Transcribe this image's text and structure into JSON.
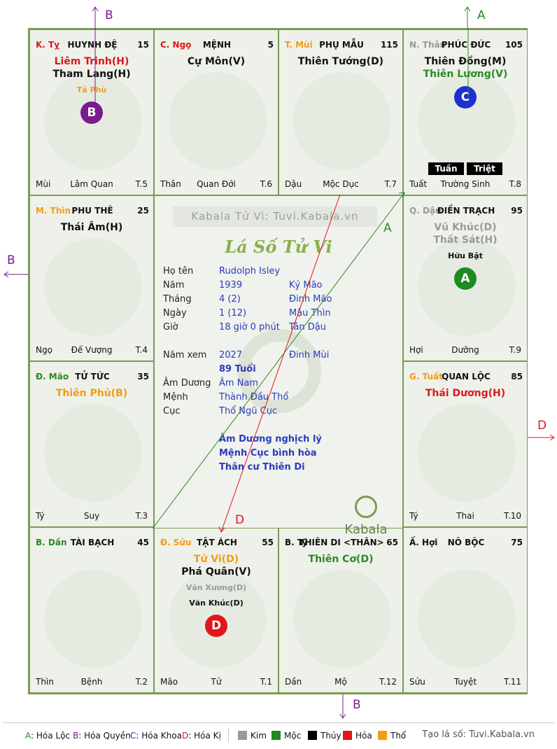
{
  "colors": {
    "red": "#e0161a",
    "orange": "#f39c12",
    "green": "#2a8a23",
    "blue": "#1f2fd0",
    "grey": "#9a9a9a",
    "purple": "#7a1b8e",
    "black": "#111111"
  },
  "palaces": [
    {
      "id": "ty",
      "col": 0,
      "row": 0,
      "can": "K. Tỵ",
      "can_color": "#e0161a",
      "name": "HUYNH ĐỆ",
      "num": "15",
      "stars": [
        {
          "t": "Liêm Trinh(H)",
          "c": "#e0161a"
        },
        {
          "t": "Tham Lang(H)",
          "c": "#111111"
        }
      ],
      "minor": [
        {
          "t": "Tả Phù",
          "c": "#f39c12"
        }
      ],
      "badge": {
        "t": "B",
        "c": "#7a1b8e"
      },
      "foot": {
        "l": "Mùi",
        "m": "Lâm Quan",
        "r": "T.5"
      }
    },
    {
      "id": "ngo",
      "col": 1,
      "row": 0,
      "can": "C. Ngọ",
      "can_color": "#e0161a",
      "name": "MỆNH",
      "num": "5",
      "stars": [
        {
          "t": "Cự Môn(V)",
          "c": "#111111"
        }
      ],
      "minor": [],
      "badge": null,
      "foot": {
        "l": "Thân",
        "m": "Quan Đới",
        "r": "T.6"
      }
    },
    {
      "id": "mui",
      "col": 2,
      "row": 0,
      "can": "T. Mùi",
      "can_color": "#f39c12",
      "name": "PHỤ MẪU",
      "num": "115",
      "stars": [
        {
          "t": "Thiên Tướng(D)",
          "c": "#111111"
        }
      ],
      "minor": [],
      "badge": null,
      "foot": {
        "l": "Dậu",
        "m": "Mộc Dục",
        "r": "T.7"
      }
    },
    {
      "id": "than",
      "col": 3,
      "row": 0,
      "can": "N. Thân",
      "can_color": "#9a9a9a",
      "name": "PHÚC ĐỨC",
      "num": "105",
      "stars": [
        {
          "t": "Thiên Đồng(M)",
          "c": "#111111"
        },
        {
          "t": "Thiên Lương(V)",
          "c": "#2a8a23"
        }
      ],
      "minor": [],
      "badge": {
        "t": "C",
        "c": "#1f2fd0"
      },
      "foot": {
        "l": "Tuất",
        "m": "Trường Sinh",
        "r": "T.8"
      }
    },
    {
      "id": "thin",
      "col": 0,
      "row": 1,
      "can": "M. Thìn",
      "can_color": "#f39c12",
      "name": "PHU THÊ",
      "num": "25",
      "stars": [
        {
          "t": "Thái Âm(H)",
          "c": "#111111"
        }
      ],
      "minor": [],
      "badge": null,
      "foot": {
        "l": "Ngọ",
        "m": "Đế Vượng",
        "r": "T.4"
      }
    },
    {
      "id": "dau",
      "col": 3,
      "row": 1,
      "can": "Q. Dậu",
      "can_color": "#9a9a9a",
      "name": "ĐIỀN TRẠCH",
      "num": "95",
      "stars": [
        {
          "t": "Vũ Khúc(D)",
          "c": "#9a9a9a"
        },
        {
          "t": "Thất Sát(H)",
          "c": "#9a9a9a"
        }
      ],
      "minor": [
        {
          "t": "Hữu Bật",
          "c": "#111111"
        }
      ],
      "badge": {
        "t": "A",
        "c": "#1e8a22"
      },
      "foot": {
        "l": "Hợi",
        "m": "Dưỡng",
        "r": "T.9"
      }
    },
    {
      "id": "mao",
      "col": 0,
      "row": 2,
      "can": "Đ. Mão",
      "can_color": "#2a8a23",
      "name": "TỬ TỨC",
      "num": "35",
      "stars": [
        {
          "t": "Thiên Phủ(B)",
          "c": "#f39c12"
        }
      ],
      "minor": [],
      "badge": null,
      "foot": {
        "l": "Tý",
        "m": "Suy",
        "r": "T.3"
      }
    },
    {
      "id": "tuat",
      "col": 3,
      "row": 2,
      "can": "G. Tuất",
      "can_color": "#f39c12",
      "name": "QUAN LỘC",
      "num": "85",
      "stars": [
        {
          "t": "Thái Dương(H)",
          "c": "#e0161a"
        }
      ],
      "minor": [],
      "badge": null,
      "foot": {
        "l": "Tý",
        "m": "Thai",
        "r": "T.10"
      }
    },
    {
      "id": "dan",
      "col": 0,
      "row": 3,
      "can": "B. Dần",
      "can_color": "#2a8a23",
      "name": "TÀI BẠCH",
      "num": "45",
      "stars": [],
      "minor": [],
      "badge": null,
      "foot": {
        "l": "Thìn",
        "m": "Bệnh",
        "r": "T.2"
      }
    },
    {
      "id": "suu",
      "col": 1,
      "row": 3,
      "can": "Đ. Sửu",
      "can_color": "#f39c12",
      "name": "TẬT ÁCH",
      "num": "55",
      "stars": [
        {
          "t": "Tử Vi(D)",
          "c": "#f39c12"
        },
        {
          "t": "Phá Quân(V)",
          "c": "#111111"
        }
      ],
      "minor": [
        {
          "t": "Văn Xương(D)",
          "c": "#9a9a9a"
        },
        {
          "t": "Văn Khúc(D)",
          "c": "#111111"
        }
      ],
      "badge": {
        "t": "D",
        "c": "#e0161a"
      },
      "foot": {
        "l": "Mão",
        "m": "Tử",
        "r": "T.1"
      }
    },
    {
      "id": "tyy",
      "col": 2,
      "row": 3,
      "can": "B. Tý",
      "can_color": "#111111",
      "name": "THIÊN DI <THÂN>",
      "num": "65",
      "stars": [
        {
          "t": "Thiên Cơ(D)",
          "c": "#2a8a23"
        }
      ],
      "minor": [],
      "badge": null,
      "foot": {
        "l": "Dần",
        "m": "Mộ",
        "r": "T.12"
      }
    },
    {
      "id": "hoi",
      "col": 3,
      "row": 3,
      "can": "Ấ. Hợi",
      "can_color": "#111111",
      "name": "NÔ BỘC",
      "num": "75",
      "stars": [],
      "minor": [],
      "badge": null,
      "foot": {
        "l": "Sửu",
        "m": "Tuyệt",
        "r": "T.11"
      }
    }
  ],
  "center": {
    "watermark": "Kabala Tử Vi: Tuvi.Kabala.vn",
    "title": "Lá Số Tử Vi",
    "rows": [
      {
        "k": "Họ tên",
        "v": "Rudolph Isley",
        "v2": ""
      },
      {
        "k": "Năm",
        "v": "1939",
        "v2": "Kỷ Mão"
      },
      {
        "k": "Tháng",
        "v": "4  (2)",
        "v2": "Đinh Mão"
      },
      {
        "k": "Ngày",
        "v": "1  (12)",
        "v2": "Mậu Thìn"
      },
      {
        "k": "Giờ",
        "v": "18 giờ 0 phút",
        "v2": "Tân Dậu"
      },
      {
        "k": "Năm xem",
        "v": "2027",
        "v2": "Đinh Mùi"
      },
      {
        "k": "",
        "v": "89 Tuổi",
        "v2": ""
      },
      {
        "k": "Âm Dương",
        "v": "Âm Nam",
        "v2": ""
      },
      {
        "k": "Mệnh",
        "v": "Thành Đầu Thổ",
        "v2": ""
      },
      {
        "k": "Cục",
        "v": "Thổ Ngũ Cục",
        "v2": ""
      }
    ],
    "notes": [
      "Âm Dương nghịch lý",
      "Mệnh Cục bình hòa",
      "Thân cư Thiên Di"
    ],
    "logo": "Kabala"
  },
  "tuan_triet": {
    "tuan": "Tuần",
    "triet": "Triệt"
  },
  "arrow_labels": {
    "top_left": "B",
    "top_right": "A",
    "left": "B",
    "right": "D",
    "bottom": "B",
    "center_a": "A",
    "center_d": "D"
  },
  "legend": {
    "items": [
      {
        "label": "A: Hóa Lộc",
        "color": "#2a8a23"
      },
      {
        "label": "B: Hóa Quyền",
        "color": "#7a1b8e"
      },
      {
        "label": "C: Hóa Khoa",
        "color": "#1f2fd0"
      },
      {
        "label": "D: Hóa Kị",
        "color": "#e0161a"
      }
    ],
    "elements": [
      {
        "label": "Kim",
        "color": "#9a9a9a"
      },
      {
        "label": "Mộc",
        "color": "#1e8a22"
      },
      {
        "label": "Thủy",
        "color": "#000000"
      },
      {
        "label": "Hỏa",
        "color": "#e0161a"
      },
      {
        "label": "Thổ",
        "color": "#f39c12"
      }
    ],
    "site": "Tạo lá số: Tuvi.Kabala.vn"
  }
}
